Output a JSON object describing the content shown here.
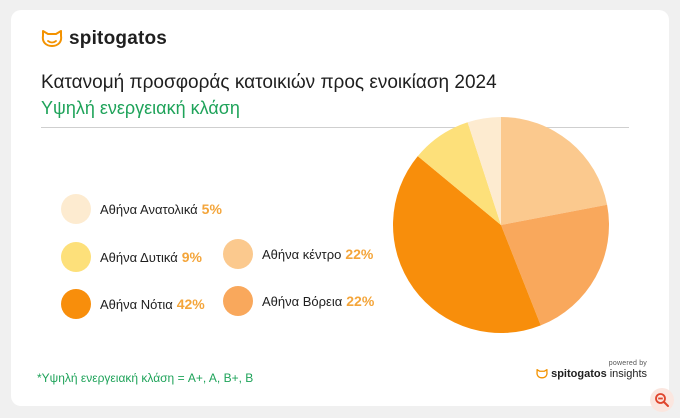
{
  "brand": {
    "name": "spitogatos"
  },
  "header": {
    "title": "Κατανομή προσφοράς κατοικιών προς ενοικίαση",
    "year": "2024",
    "subtitle": "Υψηλή ενεργειακή κλάση"
  },
  "footnote": "*Υψηλή ενεργειακή κλάση = A+, A, B+, B",
  "powered": {
    "label": "powered by",
    "brand": "spitogatos",
    "suffix": "insights"
  },
  "chart_data": {
    "type": "pie",
    "title": "Κατανομή προσφοράς κατοικιών προς ενοικίαση 2024",
    "slices": [
      {
        "name": "Αθήνα κέντρο",
        "value": 22,
        "label": "22%",
        "color": "#fbc98e"
      },
      {
        "name": "Αθήνα Βόρεια",
        "value": 22,
        "label": "22%",
        "color": "#f9a85c"
      },
      {
        "name": "Αθήνα Νότια",
        "value": 42,
        "label": "42%",
        "color": "#f88e0b"
      },
      {
        "name": "Αθήνα Δυτικά",
        "value": 9,
        "label": "9%",
        "color": "#fde07a"
      },
      {
        "name": "Αθήνα Ανατολικά",
        "value": 5,
        "label": "5%",
        "color": "#fdebd0"
      }
    ]
  },
  "colors": {
    "accent_green": "#1fa35a",
    "percent_orange": "#f4a53a"
  },
  "icons": {
    "brand": "cat-logo-icon",
    "zoom": "zoom-out-icon"
  }
}
